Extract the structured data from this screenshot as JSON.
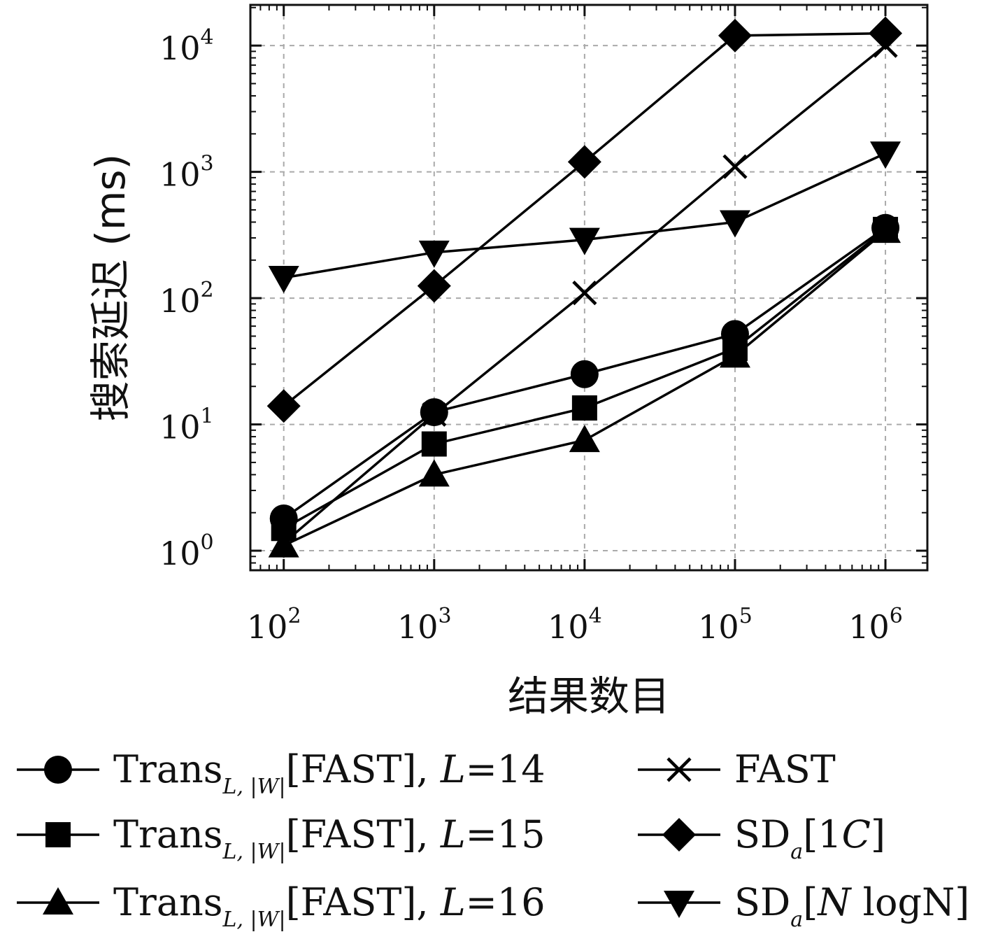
{
  "chart_data": {
    "type": "line",
    "xlabel": "结果数目",
    "ylabel": "搜索延迟 (ms)",
    "x_scale": "log",
    "y_scale": "log",
    "x": [
      100,
      1000,
      10000,
      100000,
      1000000
    ],
    "xlim": [
      60,
      1900000
    ],
    "ylim": [
      0.7,
      21000
    ],
    "x_ticks": [
      {
        "value": 100,
        "base": "10",
        "exp": "2"
      },
      {
        "value": 1000,
        "base": "10",
        "exp": "3"
      },
      {
        "value": 10000,
        "base": "10",
        "exp": "4"
      },
      {
        "value": 100000,
        "base": "10",
        "exp": "5"
      },
      {
        "value": 1000000,
        "base": "10",
        "exp": "6"
      }
    ],
    "y_ticks": [
      {
        "value": 1,
        "base": "10",
        "exp": "0"
      },
      {
        "value": 10,
        "base": "10",
        "exp": "1"
      },
      {
        "value": 100,
        "base": "10",
        "exp": "2"
      },
      {
        "value": 1000,
        "base": "10",
        "exp": "3"
      },
      {
        "value": 10000,
        "base": "10",
        "exp": "4"
      }
    ],
    "grid": true,
    "legend_position": "bottom",
    "series": [
      {
        "marker": "circle",
        "legend": {
          "main": "Trans",
          "sub": "L, |W|",
          "tail": "[FAST], ",
          "italic": "L",
          "suffix": "=14"
        },
        "values": [
          1.8,
          12.5,
          25,
          52,
          360
        ]
      },
      {
        "marker": "square",
        "legend": {
          "main": "Trans",
          "sub": "L, |W|",
          "tail": "[FAST], ",
          "italic": "L",
          "suffix": "=15"
        },
        "values": [
          1.5,
          7,
          13.5,
          40,
          350
        ]
      },
      {
        "marker": "triangle-up",
        "legend": {
          "main": "Trans",
          "sub": "L, |W|",
          "tail": "[FAST], ",
          "italic": "L",
          "suffix": "=16"
        },
        "values": [
          1.1,
          4,
          7.5,
          35,
          340
        ]
      },
      {
        "marker": "x",
        "legend": {
          "main": "FAST",
          "sub": "",
          "tail": "",
          "italic": "",
          "suffix": ""
        },
        "values": [
          1.15,
          12,
          110,
          1100,
          10000
        ]
      },
      {
        "marker": "diamond",
        "legend": {
          "main": "SD",
          "sub": "a",
          "tail": "[1",
          "italic": "C",
          "suffix": "]"
        },
        "values": [
          14,
          125,
          1200,
          12000,
          12500
        ]
      },
      {
        "marker": "triangle-down",
        "legend": {
          "main": "SD",
          "sub": "a",
          "tail": "[",
          "italic": "N",
          "suffix": " logN]"
        },
        "values": [
          145,
          230,
          290,
          400,
          1400
        ]
      }
    ]
  }
}
